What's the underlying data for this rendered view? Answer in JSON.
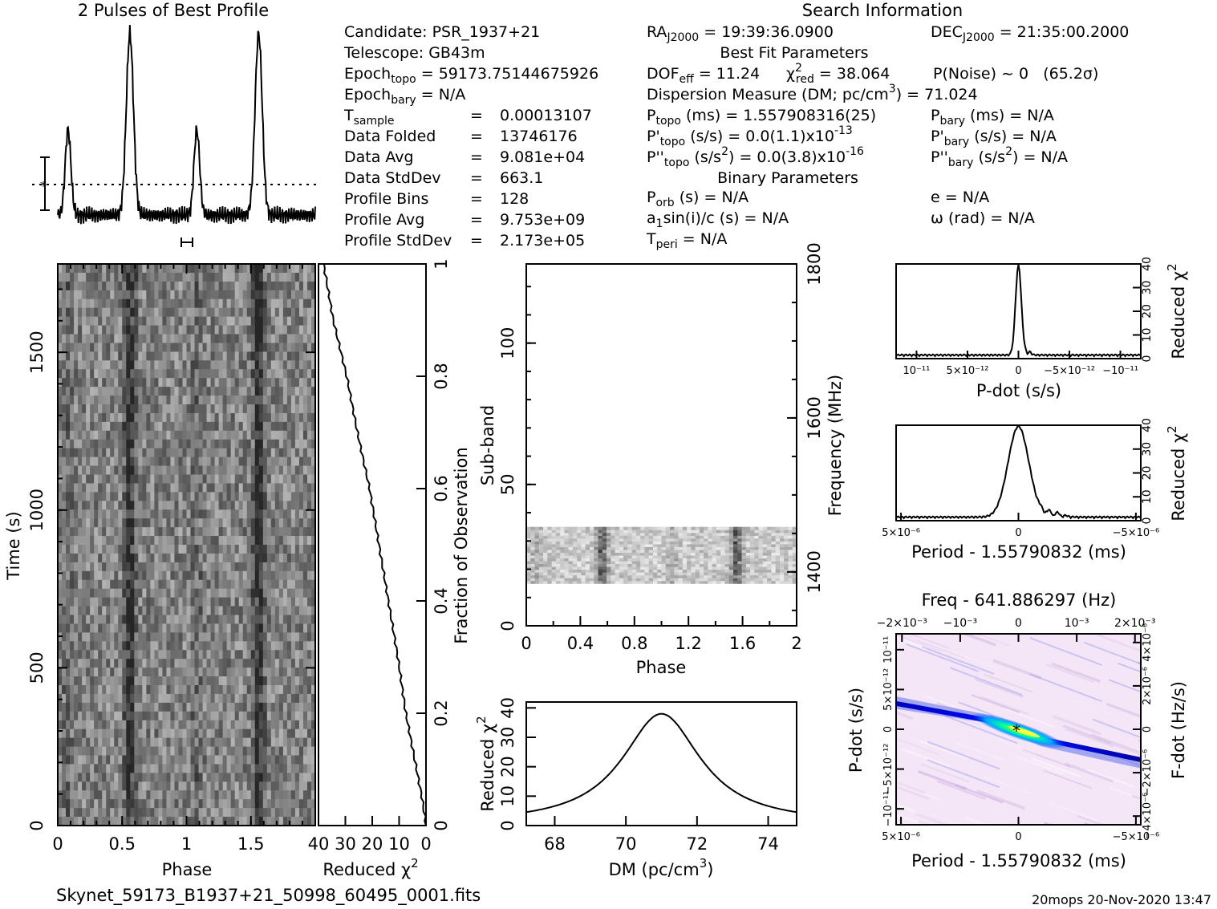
{
  "title_profile": "2 Pulses of Best Profile",
  "title_search": "Search Information",
  "footer": {
    "filename": "Skynet_59173_B1937+21_50998_60495_0001.fits",
    "stamp": "20mops 20-Nov-2020 13:47"
  },
  "info": {
    "candidate": "Candidate:  PSR_1937+21",
    "telescope": "Telescope:  GB43m",
    "epoch_topo": {
      "main": "Epoch",
      "sub": "topo",
      "rest": " = 59173.75144675926"
    },
    "epoch_bary": {
      "main": "Epoch",
      "sub": "bary",
      "rest": " = N/A"
    },
    "table": [
      {
        "label": "T",
        "sub": "sample",
        "value": "0.00013107"
      },
      {
        "label": "Data Folded",
        "sub": "",
        "value": "13746176"
      },
      {
        "label": "Data Avg",
        "sub": "",
        "value": "9.081e+04"
      },
      {
        "label": "Data StdDev",
        "sub": "",
        "value": "663.1"
      },
      {
        "label": "Profile Bins",
        "sub": "",
        "value": "128"
      },
      {
        "label": "Profile Avg",
        "sub": "",
        "value": "9.753e+09"
      },
      {
        "label": "Profile StdDev",
        "sub": "",
        "value": "2.173e+05"
      }
    ],
    "ra": {
      "main": "RA",
      "sub": "J2000",
      "rest": " = 19:39:36.0900"
    },
    "dec": {
      "main": "DEC",
      "sub": "J2000",
      "rest": " = 21:35:00.2000"
    },
    "best_fit_header": "Best Fit Parameters",
    "dof": {
      "main": "DOF",
      "sub": "eff",
      "rest": " = 11.24"
    },
    "chi2": {
      "main": "χ",
      "sup": "2",
      "sub": "red",
      "rest": " = 38.064"
    },
    "pnoise": "P(Noise) ~ 0   (65.2σ)",
    "dm_line": {
      "pre": "Dispersion Measure (DM; pc/cm",
      "sup": "3",
      "post": ") = 71.024"
    },
    "ptopo": {
      "main": "P",
      "sub": "topo",
      "rest": " (ms) =  1.557908316(25)"
    },
    "pbary": {
      "main": "P",
      "sub": "bary",
      "rest": " (ms) = N/A"
    },
    "pdtopo": {
      "main": "P'",
      "sub": "topo",
      "rest": " (s/s) = 0.0(1.1)x10",
      "sup": "-13"
    },
    "pdbary": {
      "main": "P'",
      "sub": "bary",
      "rest": " (s/s) = N/A"
    },
    "pddtopo": {
      "main": "P''",
      "sub": "topo",
      "rest": " (s/s",
      "sup": "2",
      "rest2": ") = 0.0(3.8)x10",
      "sup2": "-16"
    },
    "pddbary": {
      "main": "P''",
      "sub": "bary",
      "rest": " (s/s",
      "sup": "2",
      "rest2": ") = N/A"
    },
    "binary_header": "Binary Parameters",
    "porb": {
      "main": "P",
      "sub": "orb",
      "rest": " (s) = N/A"
    },
    "a1sini": {
      "main": "a",
      "sub": "1",
      "rest": "sin(i)/c (s) = N/A"
    },
    "tperi": {
      "main": "T",
      "sub": "peri",
      "rest": " = N/A"
    },
    "ecc": "e = N/A",
    "omega": "ω (rad) = N/A"
  },
  "labels": {
    "time_axis": "Time (s)",
    "phase": "Phase",
    "reduced_chi2": "Reduced χ",
    "chi2_sup": "2",
    "fraction_obs": "Fraction of Observation",
    "subband": "Sub-band",
    "frequency": "Frequency (MHz)",
    "dm_axis": "DM (pc/cm",
    "dm_axis_sup": "3",
    "dm_axis_close": ")",
    "pdot_axis": "P-dot (s/s)",
    "period_axis": "Period - 1.55790832 (ms)",
    "freq_title": "Freq - 641.886297 (Hz)",
    "fdot_axis": "F-dot (Hz/s)"
  },
  "ticks": {
    "time_y": [
      "0",
      "500",
      "1000",
      "1500"
    ],
    "phase_x": [
      "0",
      "0.5",
      "1",
      "1.5"
    ],
    "chi2_x": [
      "40",
      "30",
      "20",
      "10",
      "0"
    ],
    "fraction_y": [
      "0",
      "0.2",
      "0.4",
      "0.6",
      "0.8",
      "1"
    ],
    "subband_y": [
      "0",
      "50",
      "100"
    ],
    "freq_y": [
      "1400",
      "1600",
      "1800"
    ],
    "phase2_x": [
      "0",
      "0.4",
      "0.8",
      "1.2",
      "1.6",
      "2"
    ],
    "dm_x": [
      "68",
      "70",
      "72",
      "74"
    ],
    "dm_chi_y": [
      "0",
      "10",
      "20",
      "30",
      "40"
    ],
    "pdot_x": [
      "10⁻¹¹",
      "5×10⁻¹²",
      "0",
      "−5×10⁻¹²",
      "−10⁻¹¹"
    ],
    "redchi_y": [
      "0",
      "10",
      "20",
      "30",
      "40"
    ],
    "period_x": [
      "5×10⁻⁶",
      "0",
      "−5×10⁻⁶"
    ],
    "freq_top_x": [
      "−2×10⁻³",
      "−10⁻³",
      "0",
      "10⁻³",
      "2×10⁻³"
    ],
    "pdot_y": [
      "10⁻¹¹",
      "5×10⁻¹²",
      "0",
      "−5×10⁻¹²",
      "−10⁻¹¹"
    ],
    "fdot_y": [
      "4×10⁻⁶",
      "2×10⁻⁶",
      "0",
      "−2×10⁻⁶",
      "−4×10⁻⁶"
    ]
  },
  "chart_data": [
    {
      "type": "line",
      "title": "2 Pulses of Best Profile",
      "xlabel": "",
      "ylabel": "",
      "x": [
        0,
        0.0625,
        0.125,
        0.1875,
        0.25,
        0.3125,
        0.375,
        0.4375,
        0.5,
        0.5625,
        0.625,
        0.6875,
        0.75,
        0.8125,
        0.875,
        0.9375,
        1.0,
        1.0625,
        1.125,
        1.1875,
        1.25,
        1.3125,
        1.375,
        1.4375,
        1.5,
        1.5625,
        1.625,
        1.6875,
        1.75,
        1.8125,
        1.875,
        1.9375,
        2.0
      ],
      "values": [
        0.18,
        0.45,
        0.2,
        0.06,
        0.04,
        0.05,
        0.04,
        0.07,
        0.5,
        1.0,
        0.45,
        0.1,
        0.05,
        0.03,
        0.02,
        0.03,
        0.18,
        0.45,
        0.2,
        0.06,
        0.04,
        0.05,
        0.04,
        0.07,
        0.5,
        1.0,
        0.45,
        0.1,
        0.05,
        0.03,
        0.02,
        0.03,
        0.18
      ]
    },
    {
      "type": "heatmap",
      "xlabel": "Phase",
      "ylabel": "Time (s)",
      "xlim": [
        0,
        2
      ],
      "ylim": [
        0,
        1780
      ],
      "pulse_phases": [
        0.56,
        1.56
      ]
    },
    {
      "type": "line",
      "xlabel": "Reduced χ2",
      "ylabel": "Fraction of Observation",
      "xlim": [
        40,
        0
      ],
      "ylim": [
        0,
        1
      ],
      "x": [
        0,
        0.05,
        0.1,
        0.15,
        0.2,
        0.3,
        0.4,
        0.5,
        0.6,
        0.7,
        0.8,
        0.9,
        1.0
      ],
      "values": [
        0,
        1.5,
        3.5,
        5.5,
        7.5,
        10.5,
        14,
        17.5,
        21,
        25.5,
        29.5,
        34.5,
        38.1
      ]
    },
    {
      "type": "heatmap",
      "xlabel": "Phase",
      "ylabel": "Sub-band",
      "xlim": [
        0,
        2
      ],
      "ylim": [
        0,
        128
      ],
      "band_range": [
        15,
        35
      ],
      "freq_ylim": [
        1330,
        1800
      ],
      "pulse_phases": [
        0.56,
        1.56
      ]
    },
    {
      "type": "line",
      "xlabel": "DM (pc/cm3)",
      "ylabel": "Reduced χ2",
      "xlim": [
        67.2,
        74.8
      ],
      "ylim": [
        0,
        42
      ],
      "x": [
        67.2,
        68,
        68.5,
        69,
        69.5,
        70,
        70.5,
        71,
        71.5,
        72,
        72.5,
        73,
        73.5,
        74,
        74.8
      ],
      "values": [
        2,
        3.5,
        5.5,
        9,
        14,
        21,
        30,
        38,
        33,
        24,
        15.5,
        9,
        4.5,
        1.8,
        1.5
      ]
    },
    {
      "type": "line",
      "xlabel": "P-dot (s/s)",
      "ylabel": "Reduced χ2",
      "xlim": [
        1.2e-11,
        -1.2e-11
      ],
      "ylim": [
        0,
        40
      ],
      "x": [
        1.2e-11,
        8e-12,
        4e-12,
        2e-12,
        1e-12,
        5e-13,
        0,
        -5e-13,
        -1e-12,
        -2e-12,
        -4e-12,
        -8e-12,
        -1.2e-11
      ],
      "values": [
        0.5,
        1,
        1.5,
        2.5,
        5,
        12,
        38,
        12,
        5,
        2.5,
        1.5,
        1,
        0.5
      ]
    },
    {
      "type": "line",
      "xlabel": "Period - 1.55790832 (ms)",
      "ylabel": "Reduced χ2",
      "xlim": [
        5e-06,
        -5e-06
      ],
      "ylim": [
        0,
        40
      ],
      "x": [
        5e-06,
        3e-06,
        2e-06,
        1.5e-06,
        1e-06,
        5e-07,
        0,
        -5e-07,
        -1e-06,
        -1.5e-06,
        -2e-06,
        -3e-06,
        -5e-06
      ],
      "values": [
        1,
        1.5,
        2,
        3,
        6,
        18,
        38,
        18,
        6,
        3,
        2,
        1.5,
        1
      ]
    },
    {
      "type": "heatmap",
      "title": "Freq - 641.886297 (Hz)",
      "xlabel": "Period - 1.55790832 (ms)",
      "ylabel": "P-dot (s/s)",
      "xlim": [
        5e-06,
        -5e-06
      ],
      "ylim": [
        -1.2e-11,
        1.2e-11
      ],
      "peak": [
        0,
        0
      ]
    }
  ]
}
